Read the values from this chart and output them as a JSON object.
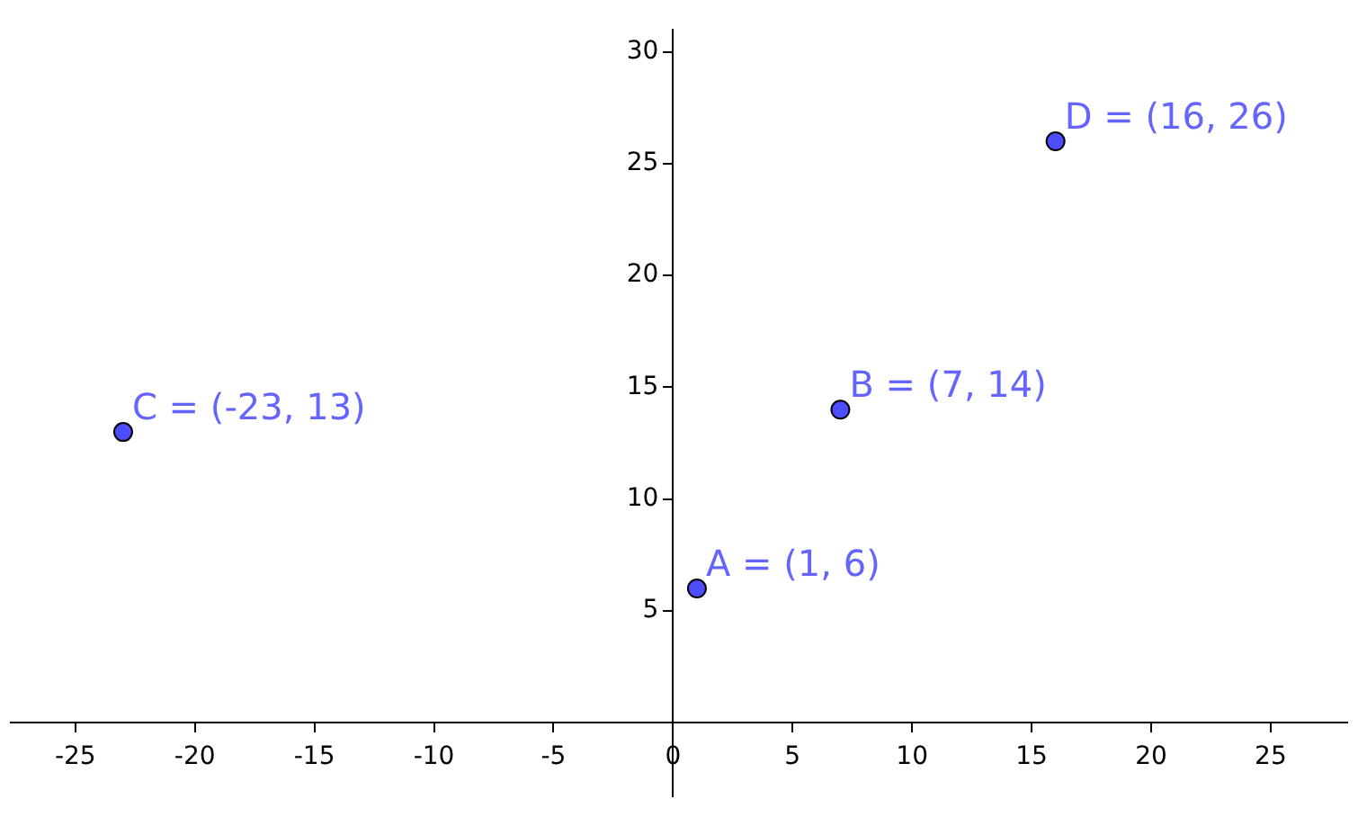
{
  "chart_data": {
    "type": "scatter",
    "x": [
      1,
      7,
      -23,
      16
    ],
    "series": [
      {
        "color": "#4d4dff",
        "values": [
          6,
          14,
          13,
          26
        ]
      }
    ],
    "xlim": [
      -27.7,
      28.2
    ],
    "ylim": [
      -3.3,
      31
    ],
    "xticks": [
      -25,
      -20,
      -15,
      -10,
      -5,
      0,
      5,
      10,
      15,
      20,
      25
    ],
    "yticks": [
      5,
      10,
      15,
      20,
      25,
      30
    ],
    "annotations": [
      {
        "text": "A = (1, 6)",
        "x": 1,
        "y": 6
      },
      {
        "text": "B = (7, 14)",
        "x": 7,
        "y": 14
      },
      {
        "text": "C = (-23, 13)",
        "x": -23,
        "y": 13
      },
      {
        "text": "D = (16, 26)",
        "x": 16,
        "y": 26
      }
    ],
    "marker": "circle",
    "grid": false,
    "legend": false
  }
}
